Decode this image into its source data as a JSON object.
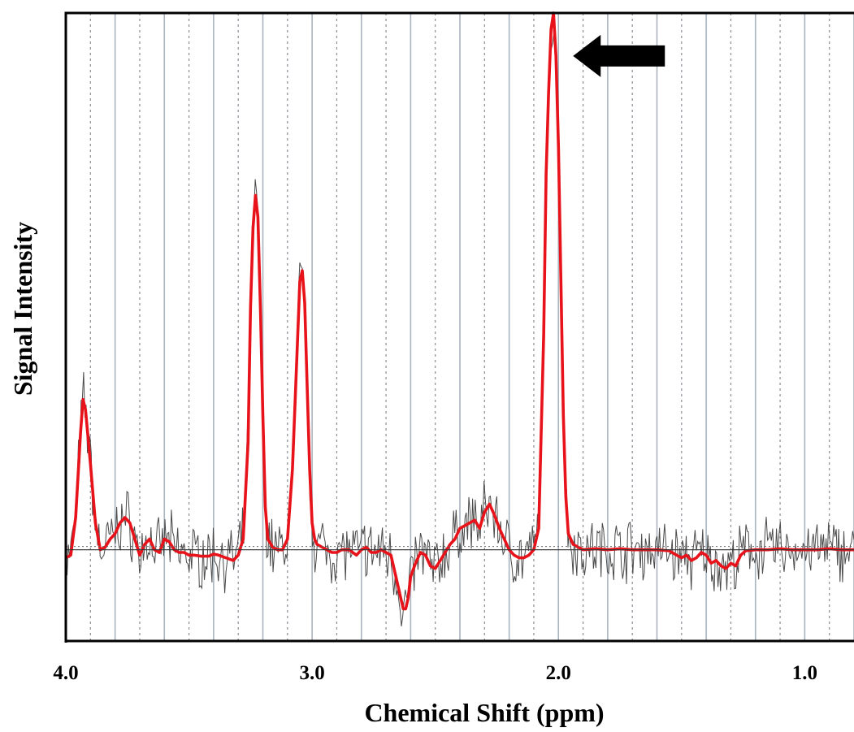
{
  "chart_data": {
    "type": "line",
    "xlabel": "Chemical Shift (ppm)",
    "ylabel": "Signal Intensity",
    "x_reversed": true,
    "xlim": [
      4.0,
      0.8
    ],
    "ylim": [
      -0.17,
      1.0
    ],
    "x_ticks": [
      4.0,
      3.0,
      2.0,
      1.0
    ],
    "x_tick_labels": [
      "4.0",
      "3.0",
      "2.0",
      "1.0"
    ],
    "solid_gridlines_ppm": [
      3.8,
      3.6,
      3.4,
      3.2,
      3.0,
      2.8,
      2.6,
      2.4,
      2.2,
      2.0,
      1.8,
      1.6,
      1.4,
      1.2,
      1.0,
      0.8
    ],
    "dashed_gridlines_ppm": [
      3.9,
      3.7,
      3.5,
      3.3,
      3.1,
      2.9,
      2.7,
      2.5,
      2.3,
      2.1,
      1.9,
      1.7,
      1.5,
      1.3,
      1.1,
      0.9
    ],
    "series": [
      {
        "role": "fitted",
        "color": "#e8131a",
        "x": [
          4.0,
          3.98,
          3.96,
          3.94,
          3.93,
          3.92,
          3.9,
          3.88,
          3.86,
          3.84,
          3.82,
          3.8,
          3.78,
          3.76,
          3.74,
          3.72,
          3.7,
          3.68,
          3.66,
          3.64,
          3.62,
          3.6,
          3.58,
          3.56,
          3.54,
          3.52,
          3.5,
          3.48,
          3.45,
          3.42,
          3.4,
          3.38,
          3.35,
          3.32,
          3.3,
          3.28,
          3.26,
          3.25,
          3.24,
          3.23,
          3.22,
          3.21,
          3.2,
          3.19,
          3.18,
          3.16,
          3.14,
          3.12,
          3.1,
          3.08,
          3.06,
          3.05,
          3.04,
          3.03,
          3.02,
          3.01,
          3.0,
          2.99,
          2.98,
          2.96,
          2.94,
          2.92,
          2.9,
          2.88,
          2.85,
          2.82,
          2.8,
          2.78,
          2.76,
          2.74,
          2.72,
          2.7,
          2.68,
          2.66,
          2.64,
          2.63,
          2.62,
          2.61,
          2.6,
          2.58,
          2.56,
          2.54,
          2.52,
          2.5,
          2.48,
          2.46,
          2.44,
          2.42,
          2.4,
          2.38,
          2.36,
          2.34,
          2.32,
          2.3,
          2.28,
          2.26,
          2.24,
          2.22,
          2.2,
          2.18,
          2.16,
          2.14,
          2.12,
          2.1,
          2.08,
          2.06,
          2.05,
          2.04,
          2.03,
          2.02,
          2.01,
          2.0,
          1.99,
          1.98,
          1.97,
          1.96,
          1.94,
          1.92,
          1.9,
          1.85,
          1.8,
          1.75,
          1.7,
          1.65,
          1.6,
          1.55,
          1.52,
          1.5,
          1.48,
          1.46,
          1.44,
          1.42,
          1.4,
          1.38,
          1.36,
          1.34,
          1.32,
          1.3,
          1.28,
          1.26,
          1.24,
          1.2,
          1.15,
          1.1,
          1.05,
          1.0,
          0.95,
          0.9,
          0.85,
          0.8
        ],
        "y": [
          -0.015,
          -0.01,
          0.06,
          0.22,
          0.28,
          0.26,
          0.16,
          0.05,
          0.0,
          0.005,
          0.02,
          0.03,
          0.05,
          0.06,
          0.05,
          0.02,
          -0.01,
          0.01,
          0.02,
          0.0,
          -0.005,
          0.02,
          0.015,
          0.0,
          -0.005,
          -0.005,
          -0.01,
          -0.01,
          -0.012,
          -0.012,
          -0.008,
          -0.01,
          -0.015,
          -0.02,
          -0.01,
          0.02,
          0.2,
          0.45,
          0.6,
          0.66,
          0.62,
          0.45,
          0.25,
          0.08,
          0.02,
          0.005,
          0.0,
          0.0,
          0.02,
          0.15,
          0.38,
          0.5,
          0.52,
          0.46,
          0.3,
          0.15,
          0.05,
          0.02,
          0.01,
          0.005,
          0.0,
          -0.005,
          -0.005,
          0.0,
          0.0,
          -0.01,
          0.0,
          0.005,
          -0.005,
          -0.005,
          0.0,
          -0.005,
          -0.01,
          -0.05,
          -0.09,
          -0.11,
          -0.11,
          -0.09,
          -0.05,
          -0.025,
          -0.005,
          -0.01,
          -0.03,
          -0.035,
          -0.02,
          -0.005,
          0.01,
          0.02,
          0.04,
          0.045,
          0.05,
          0.055,
          0.04,
          0.07,
          0.085,
          0.065,
          0.04,
          0.02,
          0.0,
          -0.01,
          -0.015,
          -0.015,
          -0.01,
          0.0,
          0.04,
          0.4,
          0.7,
          0.85,
          0.97,
          1.0,
          0.92,
          0.75,
          0.5,
          0.25,
          0.1,
          0.03,
          0.01,
          0.005,
          0.0,
          0.002,
          0.0,
          0.002,
          0.0,
          0.0,
          0.0,
          -0.002,
          -0.01,
          -0.015,
          -0.01,
          -0.02,
          -0.015,
          -0.005,
          -0.01,
          -0.025,
          -0.02,
          -0.03,
          -0.035,
          -0.025,
          -0.03,
          -0.01,
          -0.002,
          0.0,
          0.0,
          0.002,
          0.0,
          0.0,
          0.0,
          0.002,
          0.0,
          0.0
        ]
      },
      {
        "role": "raw",
        "color": "#4a4a4a",
        "seed": 7,
        "noise_amplitude": 0.045
      }
    ],
    "baseline": 0,
    "annotations": [
      {
        "type": "arrow",
        "shape": "block-arrow",
        "color": "#000000",
        "direction": "left",
        "points_to_x": 2.0,
        "points_to_y": 0.92
      }
    ]
  }
}
